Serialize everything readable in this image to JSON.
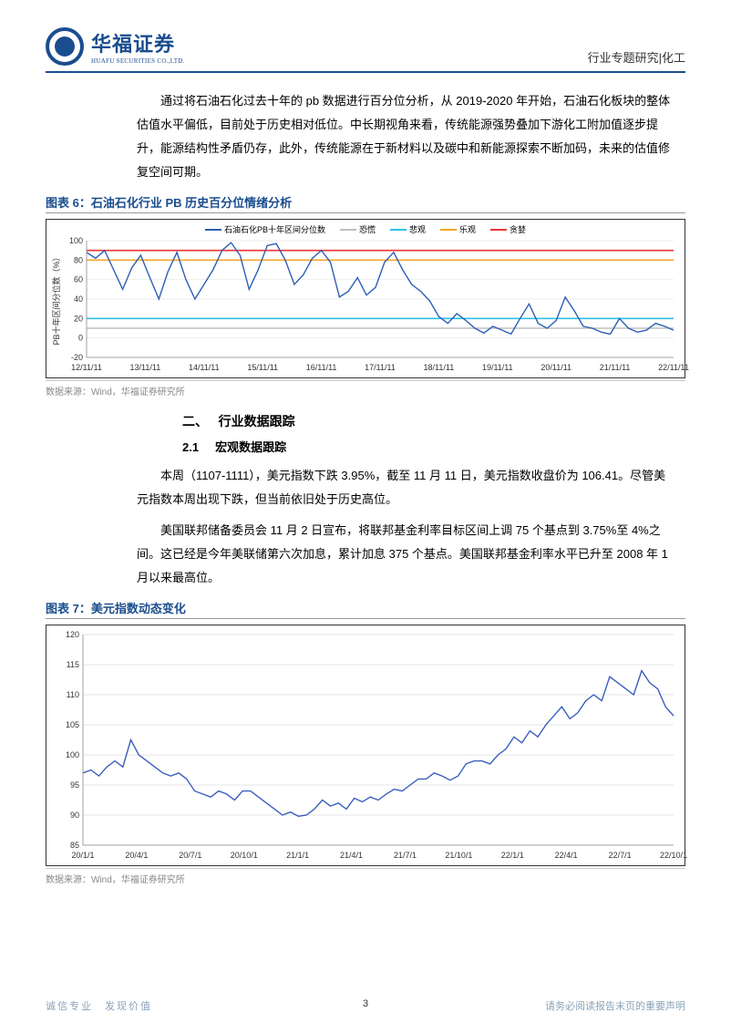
{
  "header": {
    "logo_cn": "华福证券",
    "logo_en": "HUAFU SECURITIES CO.,LTD.",
    "right": "行业专题研究|化工"
  },
  "para1": "通过将石油石化过去十年的 pb 数据进行百分位分析，从 2019-2020 年开始，石油石化板块的整体估值水平偏低，目前处于历史相对低位。中长期视角来看，传统能源强势叠加下游化工附加值逐步提升，能源结构性矛盾仍存，此外，传统能源在于新材料以及碳中和新能源探索不断加码，未来的估值修复空间可期。",
  "chart6": {
    "title": "图表 6：石油石化行业 PB 历史百分位情绪分析",
    "source": "数据来源：Wind，华福证券研究所",
    "ylabel": "PB十年区间分位数（%）",
    "legend": [
      {
        "label": "石油石化PB十年区间分位数",
        "color": "#2d5fb4"
      },
      {
        "label": "恐慌",
        "color": "#bfbfbf"
      },
      {
        "label": "悲观",
        "color": "#2fc0e8"
      },
      {
        "label": "乐观",
        "color": "#f5a623"
      },
      {
        "label": "贪婪",
        "color": "#e33"
      }
    ],
    "ylim": [
      -20,
      100
    ],
    "yticks": [
      -20,
      0,
      20,
      40,
      60,
      80,
      100
    ],
    "xlabels": [
      "12/11/11",
      "13/11/11",
      "14/11/11",
      "15/11/11",
      "16/11/11",
      "17/11/11",
      "18/11/11",
      "19/11/11",
      "20/11/11",
      "21/11/11",
      "22/11/11"
    ],
    "hlines": [
      {
        "v": 10,
        "c": "#bfbfbf"
      },
      {
        "v": 20,
        "c": "#2fc0e8"
      },
      {
        "v": 80,
        "c": "#f5a623"
      },
      {
        "v": 90,
        "c": "#e33"
      }
    ],
    "series": [
      88,
      82,
      90,
      70,
      50,
      72,
      85,
      62,
      40,
      68,
      88,
      60,
      40,
      55,
      70,
      90,
      98,
      85,
      50,
      70,
      95,
      97,
      80,
      55,
      65,
      82,
      90,
      78,
      42,
      48,
      62,
      44,
      52,
      78,
      88,
      70,
      55,
      48,
      38,
      22,
      15,
      25,
      18,
      10,
      5,
      12,
      8,
      4,
      20,
      35,
      15,
      10,
      18,
      42,
      28,
      12,
      10,
      6,
      4,
      20,
      10,
      6,
      8,
      15,
      12,
      8
    ],
    "line_color": "#2d5fb4",
    "bg": "#ffffff",
    "grid": "#e8e8e8"
  },
  "section2": {
    "num": "二、",
    "title": "行业数据跟踪"
  },
  "sub21": {
    "num": "2.1",
    "title": "宏观数据跟踪"
  },
  "para2": "本周（1107-1111），美元指数下跌 3.95%，截至 11 月 11 日，美元指数收盘价为 106.41。尽管美元指数本周出现下跌，但当前依旧处于历史高位。",
  "para3": "美国联邦储备委员会 11 月 2 日宣布，将联邦基金利率目标区间上调 75 个基点到 3.75%至 4%之间。这已经是今年美联储第六次加息，累计加息 375 个基点。美国联邦基金利率水平已升至 2008 年 1 月以来最高位。",
  "chart7": {
    "title": "图表 7：美元指数动态变化",
    "source": "数据来源：Wind，华福证券研究所",
    "ylim": [
      85,
      120
    ],
    "yticks": [
      85,
      90,
      95,
      100,
      105,
      110,
      115,
      120
    ],
    "xlabels": [
      "20/1/1",
      "20/4/1",
      "20/7/1",
      "20/10/1",
      "21/1/1",
      "21/4/1",
      "21/7/1",
      "21/10/1",
      "22/1/1",
      "22/4/1",
      "22/7/1",
      "22/10/1"
    ],
    "series": [
      97,
      97.5,
      96.5,
      98,
      99,
      98,
      102.5,
      100,
      99,
      98,
      97,
      96.5,
      97,
      96,
      94,
      93.5,
      93,
      94,
      93.5,
      92.5,
      94,
      94,
      93,
      92,
      91,
      90,
      90.5,
      89.8,
      90,
      91,
      92.5,
      91.5,
      92,
      91,
      92.8,
      92.2,
      93,
      92.5,
      93.5,
      94.3,
      94,
      95,
      96,
      96,
      97,
      96.5,
      95.8,
      96.5,
      98.5,
      99,
      99,
      98.5,
      100,
      101,
      103,
      102,
      104,
      103,
      105,
      106.5,
      108,
      106,
      107,
      109,
      110,
      109,
      113,
      112,
      111,
      110,
      114,
      112,
      111,
      108,
      106.5
    ],
    "line_color": "#3b5fbf",
    "bg": "#ffffff",
    "grid": "#dddddd"
  },
  "footer": {
    "left": "诚信专业　发现价值",
    "mid": "3",
    "right": "请务必阅读报告末页的重要声明"
  }
}
